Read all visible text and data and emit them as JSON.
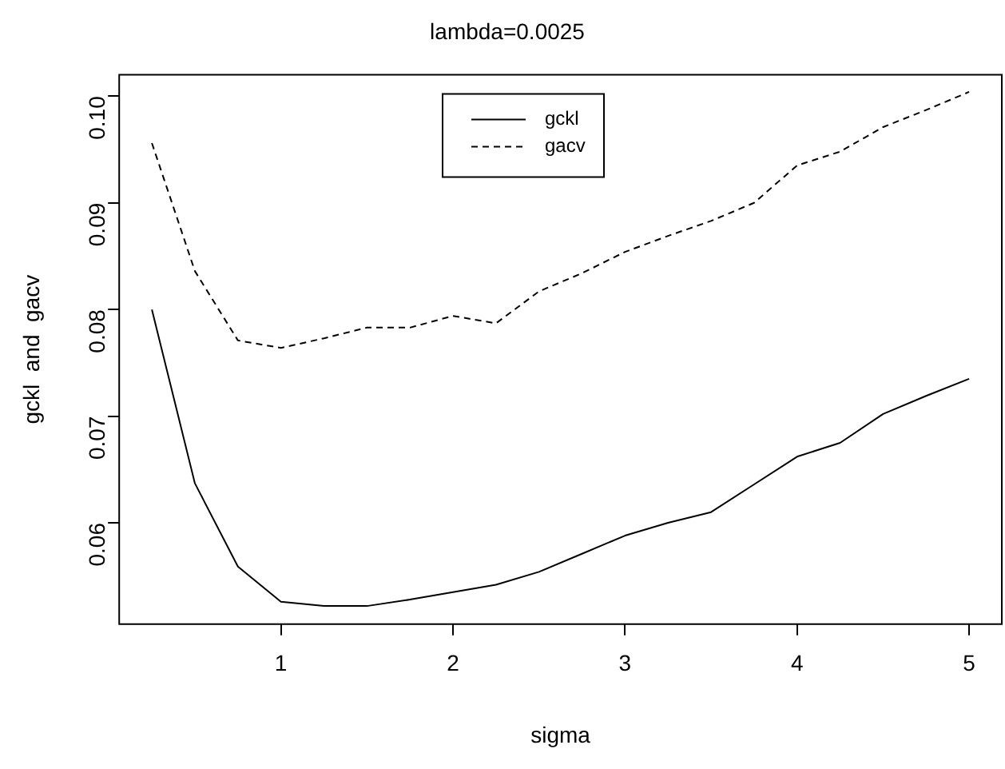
{
  "chart_data": {
    "type": "line",
    "title": "lambda=0.0025",
    "xlabel": "sigma",
    "ylabel": "gckl  and  gacv",
    "x": [
      0.25,
      0.5,
      0.75,
      1,
      1.25,
      1.5,
      1.75,
      2,
      2.25,
      2.5,
      2.75,
      3,
      3.25,
      3.5,
      3.75,
      4,
      4.25,
      4.5,
      4.75,
      5
    ],
    "series": [
      {
        "name": "gckl",
        "color": "#000000",
        "line_style": "solid",
        "values": [
          0.08,
          0.0637,
          0.0559,
          0.0526,
          0.0522,
          0.0522,
          0.0528,
          0.0535,
          0.0542,
          0.0554,
          0.0571,
          0.0588,
          0.06,
          0.061,
          0.0636,
          0.0662,
          0.0675,
          0.0702,
          0.0719,
          0.0735
        ]
      },
      {
        "name": "gacv",
        "color": "#000000",
        "line_style": "dashed",
        "values": [
          0.0956,
          0.0836,
          0.0771,
          0.0764,
          0.0773,
          0.0783,
          0.0783,
          0.0794,
          0.0787,
          0.0817,
          0.0834,
          0.0854,
          0.0869,
          0.0883,
          0.09,
          0.0935,
          0.0948,
          0.0971,
          0.0987,
          0.1004
        ]
      }
    ],
    "xlim": [
      0.06,
      5.19
    ],
    "xticks": [
      1,
      2,
      3,
      4,
      5
    ],
    "ylim": [
      0.0505,
      0.102
    ],
    "yticks": [
      {
        "value": 0.06,
        "label": "0.06"
      },
      {
        "value": 0.07,
        "label": "0.07"
      },
      {
        "value": 0.08,
        "label": "0.08"
      },
      {
        "value": 0.09,
        "label": "0.09"
      },
      {
        "value": 0.1,
        "label": "0.10"
      }
    ],
    "grid": false,
    "legend": "top",
    "marker": "none"
  }
}
